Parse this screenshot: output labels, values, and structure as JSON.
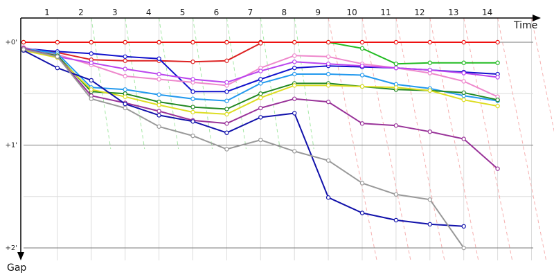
{
  "chart_data": {
    "type": "line",
    "title": "",
    "xlabel": "Time",
    "ylabel": "Gap",
    "x_ticks": [
      "1",
      "2",
      "3",
      "4",
      "5",
      "6",
      "7",
      "8",
      "9",
      "10",
      "11",
      "12",
      "13",
      "14"
    ],
    "y_ticks": [
      "+0'",
      "+1'",
      "+2'"
    ],
    "ylim": [
      0,
      2
    ],
    "grid": true,
    "pit_lines": {
      "green": [
        2,
        3,
        4,
        5,
        6,
        7,
        8
      ],
      "red": [
        9,
        10,
        11,
        12,
        13,
        14,
        15
      ]
    },
    "series": [
      {
        "color": "#22bb22",
        "points": [
          [
            0,
            0.0
          ],
          [
            1,
            0.0
          ],
          [
            2,
            0.0
          ],
          [
            3,
            0.0
          ],
          [
            4,
            0.0
          ],
          [
            5,
            0.0
          ],
          [
            6,
            0.0
          ],
          [
            7,
            0.0
          ],
          [
            8,
            0.0
          ],
          [
            9,
            0.0
          ],
          [
            10,
            0.06
          ],
          [
            11,
            0.21
          ],
          [
            12,
            0.2
          ],
          [
            13,
            0.2
          ],
          [
            14,
            0.2
          ]
        ]
      },
      {
        "color": "#ee1111",
        "points": [
          [
            0,
            0.0
          ],
          [
            1,
            0.0
          ],
          [
            2,
            0.0
          ],
          [
            3,
            0.0
          ],
          [
            4,
            0.0
          ],
          [
            5,
            0.0
          ],
          [
            6,
            0.0
          ],
          [
            7,
            0.0
          ],
          [
            8,
            0.0
          ],
          [
            9,
            0.0
          ],
          [
            10,
            0.0
          ],
          [
            11,
            0.0
          ],
          [
            12,
            0.0
          ],
          [
            13,
            0.0
          ],
          [
            14,
            0.0
          ]
        ]
      },
      {
        "color": "#dd2222",
        "points": [
          [
            0,
            0.07
          ],
          [
            1,
            0.1
          ],
          [
            2,
            0.17
          ],
          [
            3,
            0.18
          ],
          [
            4,
            0.18
          ],
          [
            5,
            0.19
          ],
          [
            6,
            0.18
          ],
          [
            7,
            0.01
          ]
        ]
      },
      {
        "color": "#1111cc",
        "points": [
          [
            0,
            0.06
          ],
          [
            1,
            0.09
          ],
          [
            2,
            0.11
          ],
          [
            3,
            0.14
          ],
          [
            4,
            0.16
          ],
          [
            5,
            0.48
          ],
          [
            6,
            0.48
          ],
          [
            7,
            0.36
          ],
          [
            8,
            0.25
          ],
          [
            9,
            0.23
          ],
          [
            10,
            0.24
          ],
          [
            11,
            0.25
          ],
          [
            12,
            0.27
          ],
          [
            13,
            0.29
          ],
          [
            14,
            0.31
          ]
        ]
      },
      {
        "color": "#ee88cc",
        "points": [
          [
            0,
            0.05
          ],
          [
            1,
            0.12
          ],
          [
            2,
            0.22
          ],
          [
            3,
            0.33
          ],
          [
            4,
            0.36
          ],
          [
            5,
            0.39
          ],
          [
            6,
            0.42
          ],
          [
            7,
            0.25
          ],
          [
            8,
            0.13
          ],
          [
            9,
            0.14
          ],
          [
            10,
            0.21
          ],
          [
            11,
            0.25
          ],
          [
            12,
            0.3
          ],
          [
            13,
            0.38
          ],
          [
            14,
            0.53
          ]
        ]
      },
      {
        "color": "#bb44ee",
        "points": [
          [
            0,
            0.06
          ],
          [
            1,
            0.14
          ],
          [
            2,
            0.2
          ],
          [
            3,
            0.26
          ],
          [
            4,
            0.31
          ],
          [
            5,
            0.36
          ],
          [
            6,
            0.39
          ],
          [
            7,
            0.28
          ],
          [
            8,
            0.19
          ],
          [
            9,
            0.21
          ],
          [
            10,
            0.23
          ],
          [
            11,
            0.25
          ],
          [
            12,
            0.27
          ],
          [
            13,
            0.3
          ],
          [
            14,
            0.34
          ]
        ]
      },
      {
        "color": "#2299ee",
        "points": [
          [
            0,
            0.06
          ],
          [
            1,
            0.11
          ],
          [
            2,
            0.44
          ],
          [
            3,
            0.46
          ],
          [
            4,
            0.51
          ],
          [
            5,
            0.55
          ],
          [
            6,
            0.57
          ],
          [
            7,
            0.4
          ],
          [
            8,
            0.31
          ],
          [
            9,
            0.31
          ],
          [
            10,
            0.32
          ],
          [
            11,
            0.41
          ],
          [
            12,
            0.45
          ],
          [
            13,
            0.52
          ],
          [
            14,
            0.57
          ]
        ]
      },
      {
        "color": "#228822",
        "points": [
          [
            0,
            0.07
          ],
          [
            1,
            0.13
          ],
          [
            2,
            0.48
          ],
          [
            3,
            0.5
          ],
          [
            4,
            0.58
          ],
          [
            5,
            0.63
          ],
          [
            6,
            0.65
          ],
          [
            7,
            0.5
          ],
          [
            8,
            0.4
          ],
          [
            9,
            0.4
          ],
          [
            10,
            0.43
          ],
          [
            11,
            0.46
          ],
          [
            12,
            0.47
          ],
          [
            13,
            0.49
          ],
          [
            14,
            0.56
          ]
        ]
      },
      {
        "color": "#dddd22",
        "points": [
          [
            0,
            0.08
          ],
          [
            1,
            0.15
          ],
          [
            2,
            0.46
          ],
          [
            3,
            0.53
          ],
          [
            4,
            0.61
          ],
          [
            5,
            0.68
          ],
          [
            6,
            0.7
          ],
          [
            7,
            0.54
          ],
          [
            8,
            0.42
          ],
          [
            9,
            0.42
          ],
          [
            10,
            0.43
          ],
          [
            11,
            0.44
          ],
          [
            12,
            0.47
          ],
          [
            13,
            0.56
          ],
          [
            14,
            0.62
          ]
        ]
      },
      {
        "color": "#993399",
        "points": [
          [
            0,
            0.06
          ],
          [
            1,
            0.14
          ],
          [
            2,
            0.52
          ],
          [
            3,
            0.59
          ],
          [
            4,
            0.67
          ],
          [
            5,
            0.76
          ],
          [
            6,
            0.79
          ],
          [
            7,
            0.64
          ],
          [
            8,
            0.55
          ],
          [
            9,
            0.58
          ],
          [
            10,
            0.79
          ],
          [
            11,
            0.81
          ],
          [
            12,
            0.87
          ],
          [
            13,
            0.94
          ],
          [
            14,
            1.23
          ]
        ]
      },
      {
        "color": "#1111aa",
        "points": [
          [
            0,
            0.08
          ],
          [
            1,
            0.25
          ],
          [
            2,
            0.37
          ],
          [
            3,
            0.6
          ],
          [
            4,
            0.71
          ],
          [
            5,
            0.77
          ],
          [
            6,
            0.88
          ],
          [
            7,
            0.73
          ],
          [
            8,
            0.69
          ],
          [
            9,
            1.51
          ],
          [
            10,
            1.66
          ],
          [
            11,
            1.73
          ],
          [
            12,
            1.77
          ],
          [
            13,
            1.79
          ]
        ]
      },
      {
        "color": "#999999",
        "points": [
          [
            0,
            0.07
          ],
          [
            1,
            0.14
          ],
          [
            2,
            0.55
          ],
          [
            3,
            0.64
          ],
          [
            4,
            0.82
          ],
          [
            5,
            0.91
          ],
          [
            6,
            1.04
          ],
          [
            7,
            0.95
          ],
          [
            8,
            1.06
          ],
          [
            9,
            1.15
          ],
          [
            10,
            1.37
          ],
          [
            11,
            1.48
          ],
          [
            12,
            1.53
          ],
          [
            13,
            2.0
          ]
        ]
      }
    ]
  }
}
